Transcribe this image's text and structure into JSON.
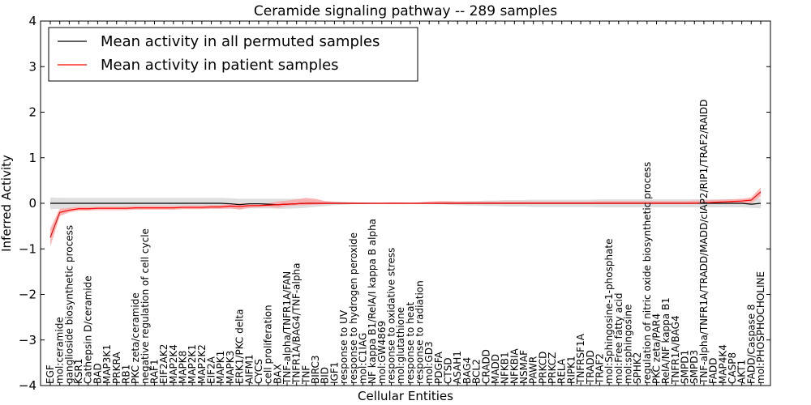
{
  "chart_data": {
    "type": "line",
    "title": "Ceramide signaling pathway -- 289 samples",
    "xlabel": "Cellular Entities",
    "ylabel": "Inferred Activity",
    "ylim": [
      -4,
      4
    ],
    "yticks": [
      -4,
      -3,
      -2,
      -1,
      0,
      1,
      2,
      3,
      4
    ],
    "grid": false,
    "legend_position": "top-left",
    "colors": {
      "permuted": "#000000",
      "patient": "#ff0000",
      "permuted_band": "#d9d9d9",
      "patient_band": "#ff9999"
    },
    "categories": [
      "EGF",
      "mol:ceramide",
      "ganglioside biosynthetic process",
      "KSR1",
      "Cathepsin D/ceramide",
      "BAD",
      "MAP3K1",
      "PRKRA",
      "RB1",
      "PKC zeta/ceramide",
      "negative regulation of cell cycle",
      "RAF1",
      "EIF2AK2",
      "MAP2K4",
      "MAPK8",
      "MAP2K1",
      "MAP2K2",
      "EIF2A",
      "MAPK1",
      "MAPK3",
      "ERK1/PKC delta",
      "AIFM1",
      "CYCS",
      "cell proliferation",
      "BAX",
      "TNF-alpha/TNFR1A/FAN",
      "TNFR1A/BAG4/TNF-alpha",
      "TNF",
      "BIRC3",
      "BID",
      "IGF1",
      "response to UV",
      "response to hydrogen peroxide",
      "mol:C1IAG",
      "NF kappa B1/RelA/I kappa B alpha",
      "mol:GW4869",
      "response to oxidative stress",
      "mol:glutathione",
      "response to heat",
      "response to radiation",
      "mol:GD3",
      "PDGFA",
      "CTSD",
      "ASAH1",
      "BAG4",
      "BCL2",
      "CRADD",
      "MADD",
      "NFKB1",
      "NFKBIA",
      "NSMAF",
      "PAWR",
      "PRKCD",
      "PRKCZ",
      "RELA",
      "RIPK1",
      "TNFRSF1A",
      "TRADD",
      "TRAF2",
      "mol:Sphingosine-1-phosphate",
      "mol:Free fatty acid",
      "mol:sphingosine",
      "SPHK2",
      "regulation of nitric oxide biosynthetic process",
      "PKC zeta/PAR4",
      "RelA/NF kappa B1",
      "TNFR1A/BAG4",
      "SMPD1",
      "SMPD3",
      "TNF-alpha/TNFR1A/TRADD/MADD/cIAP2/RIP1/TRAF2/RAIDD",
      "FADD",
      "MAP4K4",
      "CASP8",
      "AKT1",
      "FADD/Caspase 8",
      "mol:PHOSPHOCHOLINE"
    ],
    "series": [
      {
        "name": "Mean activity in all permuted samples",
        "values": [
          0.0,
          0.0,
          0.0,
          0.0,
          0.0,
          0.0,
          0.0,
          0.0,
          0.0,
          0.0,
          0.0,
          0.0,
          0.0,
          0.0,
          0.0,
          0.0,
          0.0,
          0.0,
          0.0,
          -0.01,
          -0.03,
          -0.01,
          -0.01,
          -0.02,
          -0.03,
          -0.02,
          -0.01,
          0.0,
          0.0,
          0.0,
          0.0,
          0.0,
          0.0,
          0.0,
          0.0,
          0.0,
          0.0,
          0.0,
          0.0,
          0.0,
          0.0,
          0.0,
          0.0,
          0.0,
          0.0,
          0.0,
          0.0,
          0.0,
          0.0,
          0.0,
          0.0,
          0.0,
          0.0,
          0.0,
          0.0,
          0.0,
          0.0,
          0.0,
          0.0,
          0.0,
          0.0,
          0.0,
          0.0,
          0.0,
          0.0,
          0.0,
          0.0,
          0.0,
          0.0,
          0.0,
          0.0,
          0.0,
          0.0,
          0.0,
          -0.02,
          0.0
        ],
        "lower": [
          -0.13,
          -0.12,
          -0.12,
          -0.12,
          -0.12,
          -0.12,
          -0.12,
          -0.12,
          -0.12,
          -0.12,
          -0.12,
          -0.12,
          -0.12,
          -0.12,
          -0.12,
          -0.12,
          -0.12,
          -0.12,
          -0.12,
          -0.12,
          -0.13,
          -0.11,
          -0.11,
          -0.11,
          -0.12,
          -0.12,
          -0.11,
          -0.1,
          -0.08,
          -0.06,
          -0.04,
          -0.03,
          -0.02,
          -0.02,
          -0.01,
          -0.01,
          -0.01,
          -0.01,
          -0.01,
          -0.01,
          -0.01,
          -0.02,
          -0.03,
          -0.04,
          -0.05,
          -0.05,
          -0.06,
          -0.06,
          -0.07,
          -0.07,
          -0.07,
          -0.08,
          -0.08,
          -0.08,
          -0.08,
          -0.08,
          -0.08,
          -0.08,
          -0.09,
          -0.09,
          -0.09,
          -0.09,
          -0.09,
          -0.09,
          -0.09,
          -0.09,
          -0.09,
          -0.09,
          -0.09,
          -0.09,
          -0.09,
          -0.09,
          -0.09,
          -0.09,
          -0.1,
          -0.11
        ],
        "upper": [
          0.13,
          0.12,
          0.12,
          0.12,
          0.12,
          0.12,
          0.12,
          0.12,
          0.12,
          0.12,
          0.12,
          0.12,
          0.12,
          0.12,
          0.12,
          0.12,
          0.12,
          0.12,
          0.12,
          0.11,
          0.1,
          0.1,
          0.1,
          0.1,
          0.1,
          0.1,
          0.1,
          0.09,
          0.07,
          0.05,
          0.04,
          0.03,
          0.02,
          0.02,
          0.01,
          0.01,
          0.01,
          0.01,
          0.01,
          0.01,
          0.01,
          0.02,
          0.03,
          0.04,
          0.05,
          0.05,
          0.06,
          0.06,
          0.07,
          0.07,
          0.07,
          0.08,
          0.08,
          0.08,
          0.08,
          0.08,
          0.08,
          0.08,
          0.09,
          0.09,
          0.09,
          0.09,
          0.09,
          0.09,
          0.09,
          0.09,
          0.09,
          0.09,
          0.09,
          0.09,
          0.09,
          0.09,
          0.09,
          0.09,
          0.08,
          0.11
        ]
      },
      {
        "name": "Mean activity in patient samples",
        "values": [
          -0.75,
          -0.2,
          -0.15,
          -0.12,
          -0.12,
          -0.11,
          -0.11,
          -0.11,
          -0.11,
          -0.1,
          -0.1,
          -0.1,
          -0.1,
          -0.1,
          -0.09,
          -0.09,
          -0.09,
          -0.08,
          -0.08,
          -0.06,
          -0.07,
          -0.05,
          -0.05,
          -0.04,
          -0.03,
          -0.02,
          -0.01,
          0.0,
          0.0,
          0.0,
          0.0,
          0.0,
          0.0,
          0.0,
          0.0,
          0.0,
          0.0,
          0.0,
          0.0,
          0.0,
          0.0,
          0.0,
          0.0,
          0.0,
          0.0,
          0.0,
          0.0,
          0.0,
          0.0,
          0.0,
          0.0,
          0.0,
          0.0,
          0.0,
          0.0,
          0.0,
          0.0,
          0.0,
          0.0,
          0.0,
          0.0,
          0.0,
          0.0,
          0.0,
          0.0,
          0.0,
          0.0,
          0.0,
          0.0,
          0.01,
          0.02,
          0.03,
          0.04,
          0.05,
          0.07,
          0.25
        ],
        "lower": [
          -0.95,
          -0.28,
          -0.2,
          -0.16,
          -0.16,
          -0.15,
          -0.15,
          -0.15,
          -0.15,
          -0.14,
          -0.14,
          -0.14,
          -0.14,
          -0.14,
          -0.13,
          -0.13,
          -0.13,
          -0.12,
          -0.12,
          -0.11,
          -0.14,
          -0.1,
          -0.09,
          -0.08,
          -0.1,
          -0.06,
          -0.05,
          -0.04,
          -0.03,
          -0.02,
          -0.01,
          -0.01,
          -0.01,
          -0.01,
          -0.01,
          -0.01,
          -0.01,
          -0.01,
          -0.01,
          -0.01,
          -0.01,
          -0.01,
          -0.01,
          -0.01,
          -0.01,
          -0.01,
          -0.01,
          -0.01,
          -0.01,
          -0.01,
          -0.01,
          -0.01,
          -0.01,
          -0.01,
          -0.01,
          -0.01,
          -0.01,
          -0.01,
          -0.01,
          -0.01,
          -0.01,
          -0.01,
          -0.01,
          -0.01,
          -0.01,
          -0.01,
          -0.01,
          -0.01,
          -0.01,
          -0.01,
          -0.01,
          -0.01,
          -0.01,
          -0.01,
          0.0,
          0.15
        ],
        "upper": [
          -0.55,
          -0.12,
          -0.1,
          -0.08,
          -0.08,
          -0.07,
          -0.07,
          -0.07,
          -0.07,
          -0.06,
          -0.06,
          -0.06,
          -0.06,
          -0.06,
          -0.05,
          -0.05,
          -0.05,
          -0.04,
          -0.04,
          -0.01,
          0.0,
          0.0,
          -0.01,
          0.0,
          0.04,
          0.06,
          0.09,
          0.12,
          0.1,
          0.05,
          0.03,
          0.02,
          0.02,
          0.01,
          0.01,
          0.01,
          0.02,
          0.02,
          0.01,
          0.02,
          0.04,
          0.05,
          0.05,
          0.04,
          0.04,
          0.04,
          0.04,
          0.04,
          0.04,
          0.04,
          0.04,
          0.04,
          0.04,
          0.04,
          0.04,
          0.04,
          0.04,
          0.04,
          0.05,
          0.05,
          0.05,
          0.05,
          0.05,
          0.05,
          0.05,
          0.05,
          0.05,
          0.05,
          0.06,
          0.06,
          0.07,
          0.08,
          0.09,
          0.1,
          0.13,
          0.35
        ]
      }
    ]
  }
}
